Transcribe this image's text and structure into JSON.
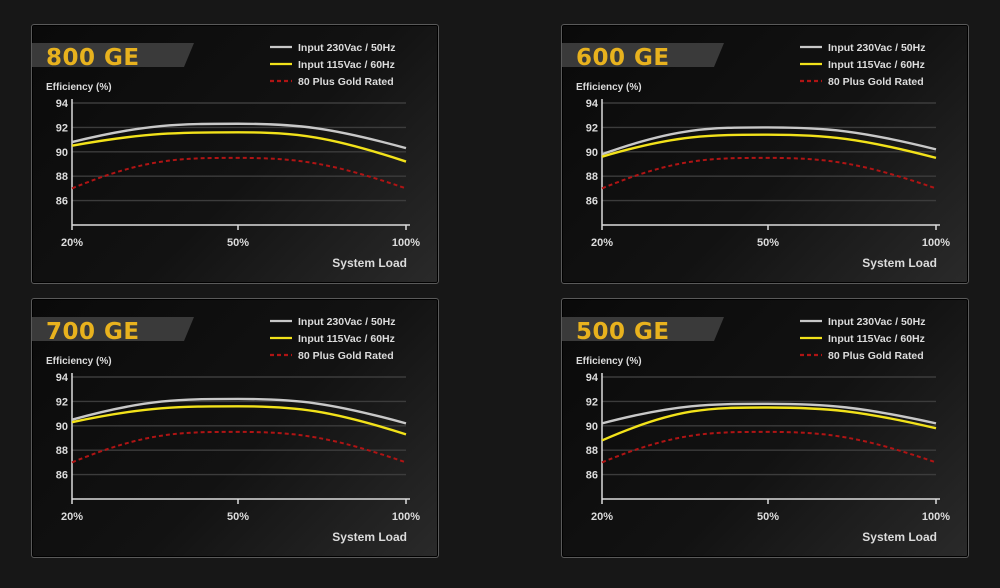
{
  "legend": {
    "items": [
      {
        "label": "Input 230Vac / 50Hz",
        "color": "#c8c8c8",
        "style": "solid"
      },
      {
        "label": "Input 115Vac / 60Hz",
        "color": "#f2e21a",
        "style": "solid"
      },
      {
        "label": "80 Plus Gold Rated",
        "color": "#b01414",
        "style": "dashed"
      }
    ]
  },
  "colors": {
    "title_text": "#e8b21e",
    "banner": "#3a3a3a",
    "axis": "#dcdcdc",
    "grid": "#3c3c3c"
  },
  "chart_data": [
    {
      "type": "line",
      "title": "800 GE",
      "ylabel": "Efficiency (%)",
      "xlabel": "System Load",
      "yticks": [
        86,
        88,
        90,
        92,
        94
      ],
      "xticks": [
        "20%",
        "50%",
        "100%"
      ],
      "ylim": [
        84,
        94
      ],
      "x": [
        20,
        50,
        100
      ],
      "series": [
        {
          "name": "Input 230Vac / 50Hz",
          "values": [
            90.8,
            92.3,
            90.3
          ]
        },
        {
          "name": "Input 115Vac / 60Hz",
          "values": [
            90.5,
            91.6,
            89.2
          ]
        },
        {
          "name": "80 Plus Gold Rated",
          "values": [
            87.0,
            89.5,
            87.0
          ]
        }
      ]
    },
    {
      "type": "line",
      "title": "600 GE",
      "ylabel": "Efficiency (%)",
      "xlabel": "System Load",
      "yticks": [
        86,
        88,
        90,
        92,
        94
      ],
      "xticks": [
        "20%",
        "50%",
        "100%"
      ],
      "ylim": [
        84,
        94
      ],
      "x": [
        20,
        50,
        100
      ],
      "series": [
        {
          "name": "Input 230Vac / 50Hz",
          "values": [
            89.8,
            92.0,
            90.2
          ]
        },
        {
          "name": "Input 115Vac / 60Hz",
          "values": [
            89.6,
            91.4,
            89.5
          ]
        },
        {
          "name": "80 Plus Gold Rated",
          "values": [
            87.0,
            89.5,
            87.0
          ]
        }
      ]
    },
    {
      "type": "line",
      "title": "700 GE",
      "ylabel": "Efficiency (%)",
      "xlabel": "System Load",
      "yticks": [
        86,
        88,
        90,
        92,
        94
      ],
      "xticks": [
        "20%",
        "50%",
        "100%"
      ],
      "ylim": [
        84,
        94
      ],
      "x": [
        20,
        50,
        100
      ],
      "series": [
        {
          "name": "Input 230Vac / 50Hz",
          "values": [
            90.5,
            92.2,
            90.2
          ]
        },
        {
          "name": "Input 115Vac / 60Hz",
          "values": [
            90.3,
            91.6,
            89.3
          ]
        },
        {
          "name": "80 Plus Gold Rated",
          "values": [
            87.0,
            89.5,
            87.0
          ]
        }
      ]
    },
    {
      "type": "line",
      "title": "500 GE",
      "ylabel": "Efficiency (%)",
      "xlabel": "System Load",
      "yticks": [
        86,
        88,
        90,
        92,
        94
      ],
      "xticks": [
        "20%",
        "50%",
        "100%"
      ],
      "ylim": [
        84,
        94
      ],
      "x": [
        20,
        50,
        100
      ],
      "series": [
        {
          "name": "Input 230Vac / 50Hz",
          "values": [
            90.2,
            91.8,
            90.2
          ]
        },
        {
          "name": "Input 115Vac / 60Hz",
          "values": [
            88.8,
            91.5,
            89.8
          ]
        },
        {
          "name": "80 Plus Gold Rated",
          "values": [
            87.0,
            89.5,
            87.0
          ]
        }
      ]
    }
  ]
}
